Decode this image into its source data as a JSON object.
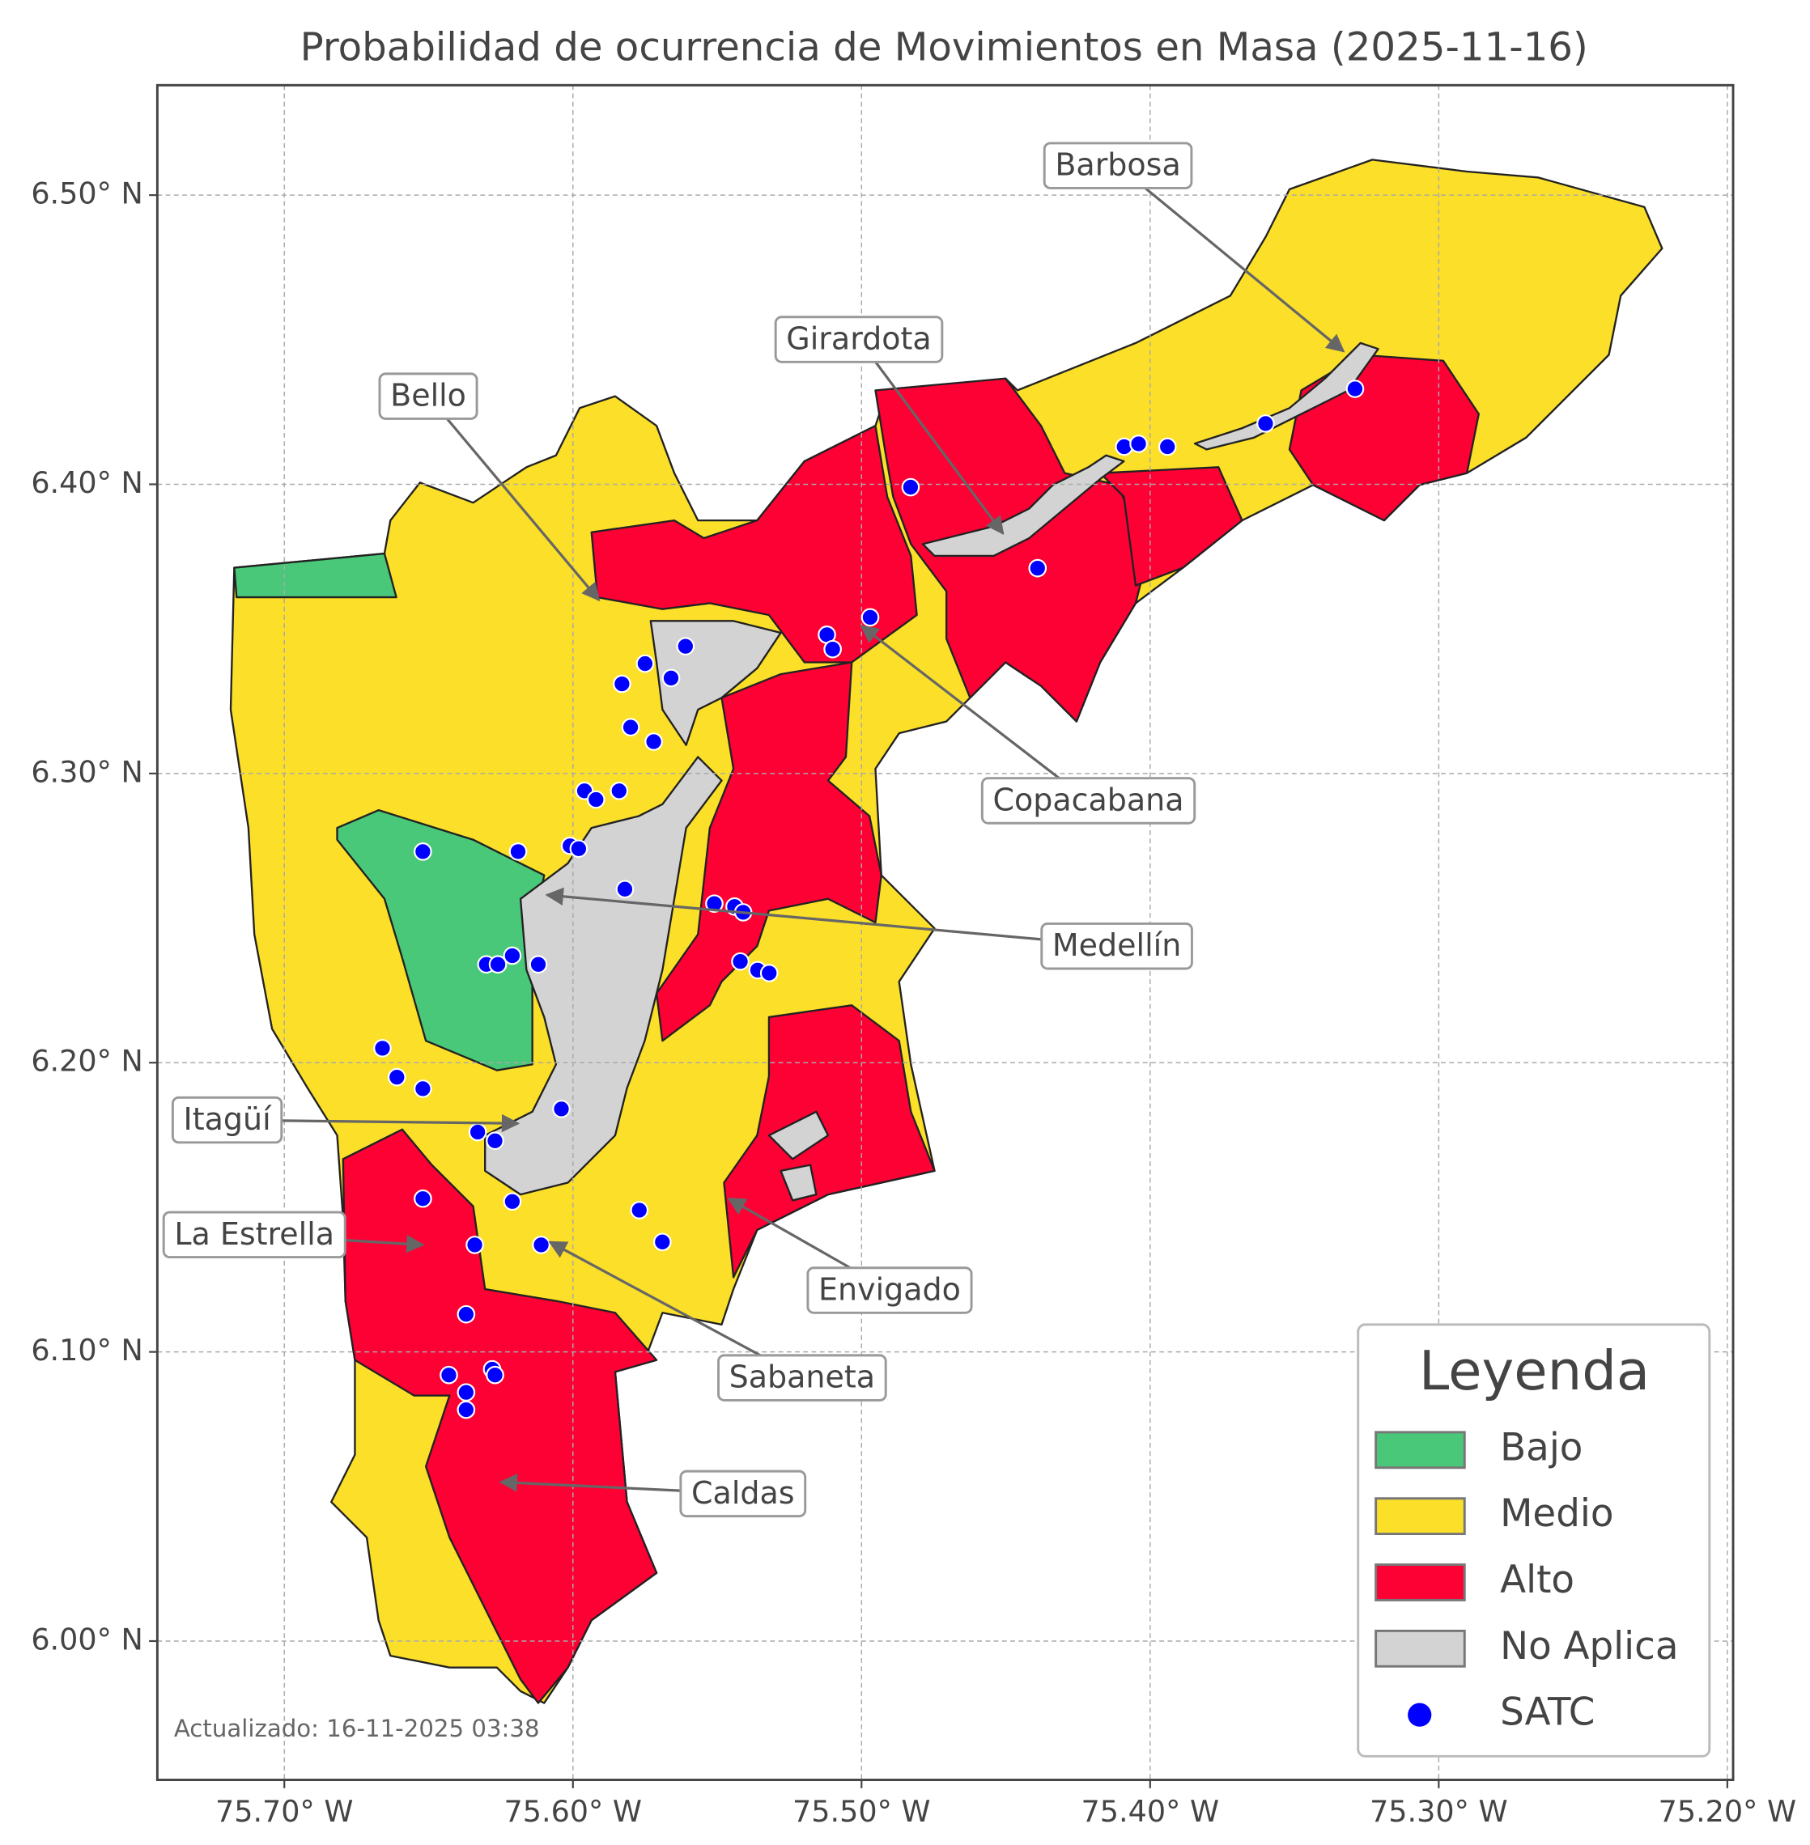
{
  "chart_data": {
    "type": "map",
    "title": "Probabilidad de ocurrencia de Movimientos en Masa (2025-11-16)",
    "xlim": [
      -75.744,
      -75.198
    ],
    "ylim": [
      5.952,
      6.538
    ],
    "xticks": [
      {
        "value": -75.7,
        "label": "75.70° W"
      },
      {
        "value": -75.6,
        "label": "75.60° W"
      },
      {
        "value": -75.5,
        "label": "75.50° W"
      },
      {
        "value": -75.4,
        "label": "75.40° W"
      },
      {
        "value": -75.3,
        "label": "75.30° W"
      },
      {
        "value": -75.2,
        "label": "75.20° W"
      }
    ],
    "yticks": [
      {
        "value": 6.0,
        "label": "6.00° N"
      },
      {
        "value": 6.1,
        "label": "6.10° N"
      },
      {
        "value": 6.2,
        "label": "6.20° N"
      },
      {
        "value": 6.3,
        "label": "6.30° N"
      },
      {
        "value": 6.4,
        "label": "6.40° N"
      },
      {
        "value": 6.5,
        "label": "6.50° N"
      }
    ],
    "grid": true,
    "legend": {
      "title": "Leyenda",
      "position": "lower right",
      "items": [
        {
          "label": "Bajo",
          "color": "#48c878"
        },
        {
          "label": "Medio",
          "color": "#fbdf29"
        },
        {
          "label": "Alto",
          "color": "#fd0034"
        },
        {
          "label": "No Aplica",
          "color": "#d3d3d3"
        }
      ]
    },
    "points": {
      "name": "SATC",
      "color": "#0000ff",
      "lon": [
        -75.329,
        -75.36,
        -75.409,
        -75.404,
        -75.394,
        -75.483,
        -75.439,
        -75.497,
        -75.512,
        -75.51,
        -75.561,
        -75.575,
        -75.566,
        -75.583,
        -75.58,
        -75.572,
        -75.596,
        -75.592,
        -75.584,
        -75.652,
        -75.619,
        -75.601,
        -75.598,
        -75.582,
        -75.551,
        -75.544,
        -75.541,
        -75.542,
        -75.536,
        -75.532,
        -75.63,
        -75.626,
        -75.621,
        -75.612,
        -75.666,
        -75.661,
        -75.652,
        -75.604,
        -75.633,
        -75.627,
        -75.652,
        -75.621,
        -75.577,
        -75.569,
        -75.634,
        -75.611,
        -75.637,
        -75.643,
        -75.628,
        -75.627,
        -75.637,
        -75.637
      ],
      "lat": [
        6.433,
        6.421,
        6.413,
        6.414,
        6.413,
        6.399,
        6.371,
        6.354,
        6.348,
        6.343,
        6.344,
        6.338,
        6.333,
        6.331,
        6.316,
        6.311,
        6.294,
        6.291,
        6.294,
        6.273,
        6.273,
        6.275,
        6.274,
        6.26,
        6.255,
        6.254,
        6.252,
        6.235,
        6.232,
        6.231,
        6.234,
        6.234,
        6.237,
        6.234,
        6.205,
        6.195,
        6.191,
        6.184,
        6.176,
        6.173,
        6.153,
        6.152,
        6.149,
        6.138,
        6.137,
        6.137,
        6.113,
        6.092,
        6.094,
        6.092,
        6.086,
        6.08
      ]
    },
    "annotations": [
      {
        "label": "Barbosa",
        "lon": -75.333,
        "lat": 6.446
      },
      {
        "label": "Girardota",
        "lon": -75.451,
        "lat": 6.383
      },
      {
        "label": "Bello",
        "lon": -75.591,
        "lat": 6.36
      },
      {
        "label": "Copacabana",
        "lon": -75.5,
        "lat": 6.351
      },
      {
        "label": "Medellín",
        "lon": -75.609,
        "lat": 6.258
      },
      {
        "label": "Itagüí",
        "lon": -75.619,
        "lat": 6.179
      },
      {
        "label": "La Estrella",
        "lon": -75.652,
        "lat": 6.137
      },
      {
        "label": "Envigado",
        "lon": -75.546,
        "lat": 6.153
      },
      {
        "label": "Sabaneta",
        "lon": -75.608,
        "lat": 6.138
      },
      {
        "label": "Caldas",
        "lon": -75.625,
        "lat": 6.055
      }
    ],
    "footnote": "Actualizado: 16-11-2025 03:38"
  }
}
